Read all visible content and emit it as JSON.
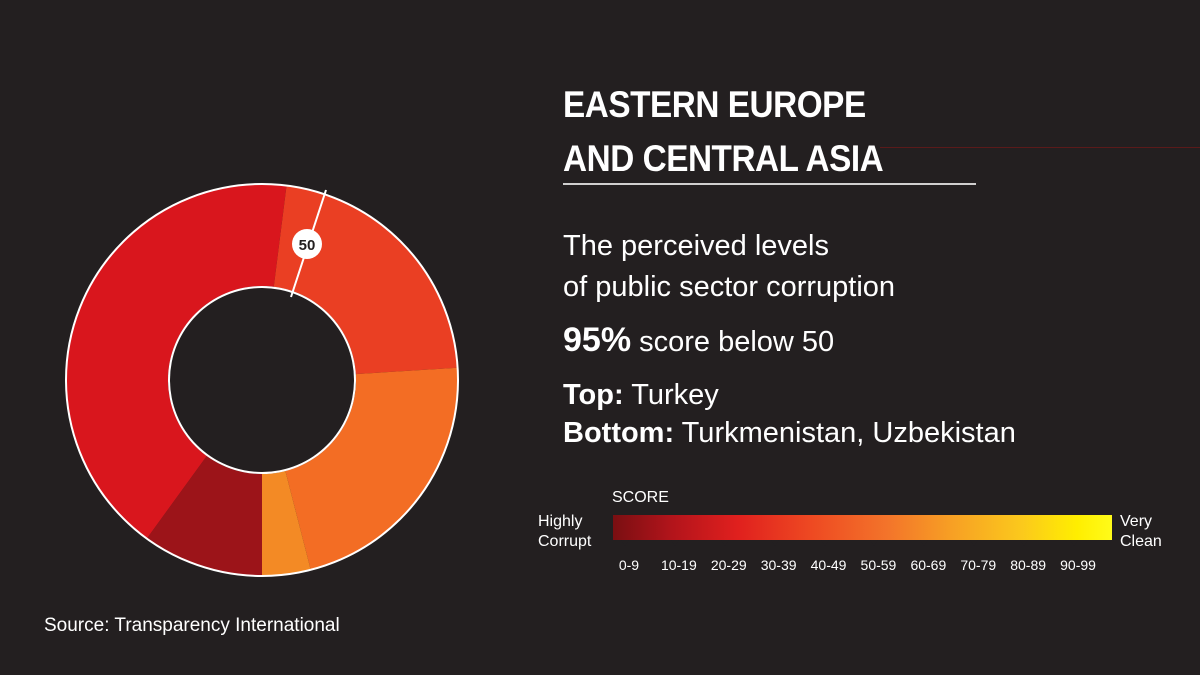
{
  "header": {
    "title_line1": "EASTERN EUROPE",
    "title_line2": "AND CENTRAL ASIA"
  },
  "subtitle": {
    "line1": "The perceived levels",
    "line2": "of public sector corruption"
  },
  "stat": {
    "percent": "95%",
    "text": " score below 50"
  },
  "ranking": {
    "top_label": "Top:",
    "top_value": " Turkey",
    "bottom_label": "Bottom:",
    "bottom_value": " Turkmenistan, Uzbekistan"
  },
  "legend": {
    "score_label": "SCORE",
    "left_line1": "Highly",
    "left_line2": "Corrupt",
    "right_line1": "Very",
    "right_line2": "Clean",
    "ranges": [
      "0-9",
      "10-19",
      "20-29",
      "30-39",
      "40-49",
      "50-59",
      "60-69",
      "70-79",
      "80-89",
      "90-99"
    ]
  },
  "source": "Source: Transparency International",
  "chart_data": {
    "type": "pie",
    "style": "donut",
    "marker_label": "50",
    "marker_value": 50,
    "categories": [
      "10-19",
      "20-29",
      "30-39",
      "40-49",
      "50-59"
    ],
    "values": [
      5,
      21,
      11,
      11,
      2
    ],
    "colors": [
      "#9c1419",
      "#d9161d",
      "#ea3f23",
      "#f36d24",
      "#f38a25"
    ],
    "total": 50,
    "note": "approximately 95% of countries score below 50"
  }
}
